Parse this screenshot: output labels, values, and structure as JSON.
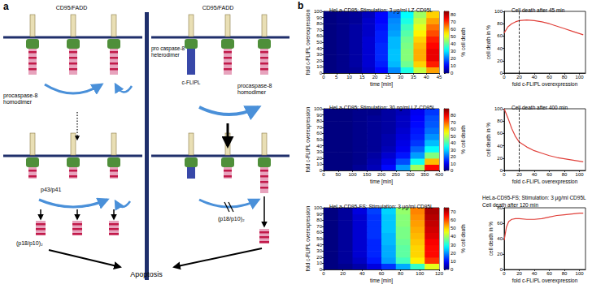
{
  "diagram": {
    "label": "a",
    "left": {
      "receptor": "CD95/FADD",
      "zymogen": [
        "procaspase-8",
        "homodimer"
      ],
      "intermediate": "p43/p41",
      "product": "(p18/p10)₂"
    },
    "right": {
      "receptor": "CD95/FADD",
      "heterodimer": [
        "pro caspase-8",
        "heterodimer"
      ],
      "inhibitor": "c-FLIPL",
      "zymogen": [
        "procaspase-8",
        "homodimer"
      ],
      "product": "(p18/p10)₂"
    },
    "outcome": "Apoptosis"
  },
  "panel_b": {
    "label": "b"
  },
  "chart_data": [
    {
      "type": "heatmap",
      "title": "HeLa-CD95; Stimulation: 3 μg/ml LZ-CD95L",
      "xlabel": "time [min]",
      "ylabel": "fold c-FLIPL overexpression",
      "x_bins": [
        0,
        5,
        10,
        15,
        20,
        25,
        30,
        35,
        40,
        45
      ],
      "y_bins": [
        0,
        10,
        20,
        30,
        40,
        50,
        60,
        70,
        80,
        90,
        100
      ],
      "cells": [
        [
          0,
          1,
          2,
          6,
          11,
          22,
          34,
          48,
          61
        ],
        [
          0,
          1,
          3,
          7,
          13,
          26,
          41,
          57,
          72
        ],
        [
          0,
          1,
          3,
          7,
          14,
          27,
          43,
          60,
          76
        ],
        [
          0,
          1,
          3,
          7,
          14,
          27,
          43,
          60,
          76
        ],
        [
          0,
          1,
          3,
          7,
          14,
          26,
          42,
          59,
          74
        ],
        [
          0,
          1,
          3,
          7,
          13,
          26,
          41,
          57,
          72
        ],
        [
          0,
          1,
          3,
          6,
          13,
          24,
          39,
          54,
          68
        ],
        [
          0,
          1,
          3,
          6,
          12,
          23,
          37,
          51,
          65
        ],
        [
          0,
          1,
          2,
          6,
          11,
          22,
          34,
          48,
          61
        ],
        [
          0,
          1,
          2,
          5,
          11,
          20,
          32,
          45,
          57
        ]
      ],
      "xlim": [
        0,
        45
      ],
      "xticks": [
        0,
        5,
        10,
        15,
        20,
        25,
        30,
        35,
        40,
        45
      ],
      "ylim": [
        0,
        100
      ],
      "yticks": [
        0,
        10,
        20,
        30,
        40,
        50,
        60,
        70,
        80,
        90,
        100
      ],
      "colorbar": {
        "label": "% cell death",
        "range": [
          0,
          85
        ],
        "ticks": [
          0,
          10,
          20,
          30,
          40,
          50,
          60,
          70,
          80
        ]
      }
    },
    {
      "type": "line",
      "title": "Cell death after 45 min",
      "xlabel": "fold c-FLIPL overexpression",
      "ylabel": "cell death in %",
      "x": [
        0,
        5,
        10,
        15,
        20,
        30,
        40,
        50,
        60,
        70,
        80,
        90,
        100,
        105
      ],
      "values": [
        65,
        75,
        80,
        83,
        85,
        86,
        85,
        83,
        80,
        76,
        72,
        68,
        64,
        62
      ],
      "color": "#e0403a",
      "xlim": [
        0,
        108
      ],
      "xticks": [
        0,
        20,
        40,
        60,
        80,
        100
      ],
      "ylim": [
        0,
        100
      ],
      "yticks": [
        0,
        20,
        40,
        60,
        80,
        100
      ],
      "vline": 20
    },
    {
      "type": "heatmap",
      "title": "HeLa-CD95; Stimulation: 30 ng/ml LZ-CD95L",
      "xlabel": "time [min]",
      "ylabel": "fold c-FLIPL overexpression",
      "x_bins": [
        0,
        50,
        100,
        150,
        200,
        250,
        300,
        350,
        400
      ],
      "y_bins": [
        0,
        10,
        20,
        30,
        40,
        50,
        60,
        70,
        80,
        90,
        100
      ],
      "cells": [
        [
          0,
          0,
          2,
          5,
          12,
          25,
          48,
          78
        ],
        [
          0,
          0,
          1,
          4,
          9,
          18,
          35,
          62
        ],
        [
          0,
          0,
          1,
          3,
          7,
          13,
          25,
          45
        ],
        [
          0,
          0,
          1,
          2,
          5,
          10,
          20,
          34
        ],
        [
          0,
          0,
          1,
          2,
          4,
          9,
          16,
          28
        ],
        [
          0,
          0,
          1,
          2,
          4,
          8,
          14,
          24
        ],
        [
          0,
          0,
          1,
          2,
          3,
          7,
          13,
          21
        ],
        [
          0,
          0,
          1,
          2,
          3,
          6,
          12,
          19
        ],
        [
          0,
          0,
          1,
          2,
          3,
          6,
          11,
          18
        ],
        [
          0,
          0,
          1,
          1,
          3,
          5,
          10,
          16
        ]
      ],
      "xlim": [
        0,
        400
      ],
      "xticks": [
        0,
        50,
        100,
        150,
        200,
        250,
        300,
        350,
        400
      ],
      "ylim": [
        0,
        100
      ],
      "yticks": [
        0,
        10,
        20,
        30,
        40,
        50,
        60,
        70,
        80,
        90,
        100
      ],
      "colorbar": {
        "label": "% cell death",
        "range": [
          0,
          90
        ],
        "ticks": [
          0,
          10,
          20,
          30,
          40,
          50,
          60,
          70,
          80
        ]
      }
    },
    {
      "type": "line",
      "title": "Cell death after 400 min",
      "xlabel": "fold c-FLIPL overexpression",
      "ylabel": "cell death in %",
      "x": [
        0,
        5,
        10,
        15,
        20,
        30,
        40,
        50,
        60,
        70,
        80,
        90,
        100,
        105
      ],
      "values": [
        100,
        85,
        68,
        55,
        46,
        38,
        32,
        28,
        24,
        21,
        19,
        17,
        15,
        14
      ],
      "color": "#e0403a",
      "xlim": [
        0,
        108
      ],
      "xticks": [
        0,
        20,
        40,
        60,
        80,
        100
      ],
      "ylim": [
        0,
        100
      ],
      "yticks": [
        0,
        20,
        40,
        60,
        80,
        100
      ],
      "vline": 20
    },
    {
      "type": "heatmap",
      "title": "HeLa-CD95-FS; Stimulation: 3 μg/ml CD95L",
      "xlabel": "time [min]",
      "ylabel": "fold c-FLIPL overexpression",
      "x_bins": [
        0,
        15,
        30,
        45,
        60,
        75,
        90,
        105,
        120
      ],
      "y_bins": [
        0,
        10,
        20,
        30,
        40,
        50,
        60,
        70,
        80,
        90,
        100
      ],
      "cells": [
        [
          0,
          1,
          3,
          7,
          13,
          22,
          32,
          45
        ],
        [
          0,
          2,
          5,
          11,
          21,
          33,
          48,
          62
        ],
        [
          0,
          2,
          6,
          12,
          22,
          35,
          50,
          65
        ],
        [
          0,
          2,
          6,
          12,
          22,
          35,
          50,
          65
        ],
        [
          0,
          2,
          6,
          12,
          23,
          36,
          51,
          66
        ],
        [
          0,
          2,
          6,
          13,
          23,
          37,
          52,
          68
        ],
        [
          0,
          2,
          6,
          13,
          24,
          37,
          53,
          69
        ],
        [
          0,
          2,
          6,
          13,
          24,
          38,
          54,
          70
        ],
        [
          0,
          2,
          6,
          13,
          24,
          38,
          55,
          71
        ],
        [
          0,
          2,
          7,
          14,
          25,
          39,
          56,
          72
        ]
      ],
      "xlim": [
        0,
        120
      ],
      "xticks": [
        0,
        20,
        40,
        60,
        80,
        100,
        120
      ],
      "ylim": [
        0,
        100
      ],
      "yticks": [
        0,
        10,
        20,
        30,
        40,
        50,
        60,
        70,
        80,
        90,
        100
      ],
      "colorbar": {
        "label": "% cell death",
        "range": [
          0,
          75
        ],
        "ticks": [
          0,
          10,
          20,
          30,
          40,
          50,
          60,
          70
        ]
      }
    },
    {
      "type": "line",
      "title": "HeLa-CD95-FS; Stimulation: 3 μg/ml CD95L",
      "subtitle": "Cell death after 120 min",
      "xlabel": "fold c-FLIPL overexpression",
      "ylabel": "cell death in %",
      "x": [
        0,
        3,
        6,
        10,
        15,
        20,
        30,
        40,
        50,
        60,
        70,
        80,
        90,
        100,
        105
      ],
      "values": [
        38,
        55,
        62,
        65,
        66,
        66,
        65,
        65,
        66,
        68,
        70,
        71,
        72,
        73,
        73
      ],
      "color": "#e0403a",
      "xlim": [
        0,
        108
      ],
      "xticks": [
        0,
        20,
        40,
        60,
        80,
        100
      ],
      "ylim": [
        0,
        80
      ],
      "yticks": [
        0,
        20,
        40,
        60,
        80
      ]
    }
  ]
}
